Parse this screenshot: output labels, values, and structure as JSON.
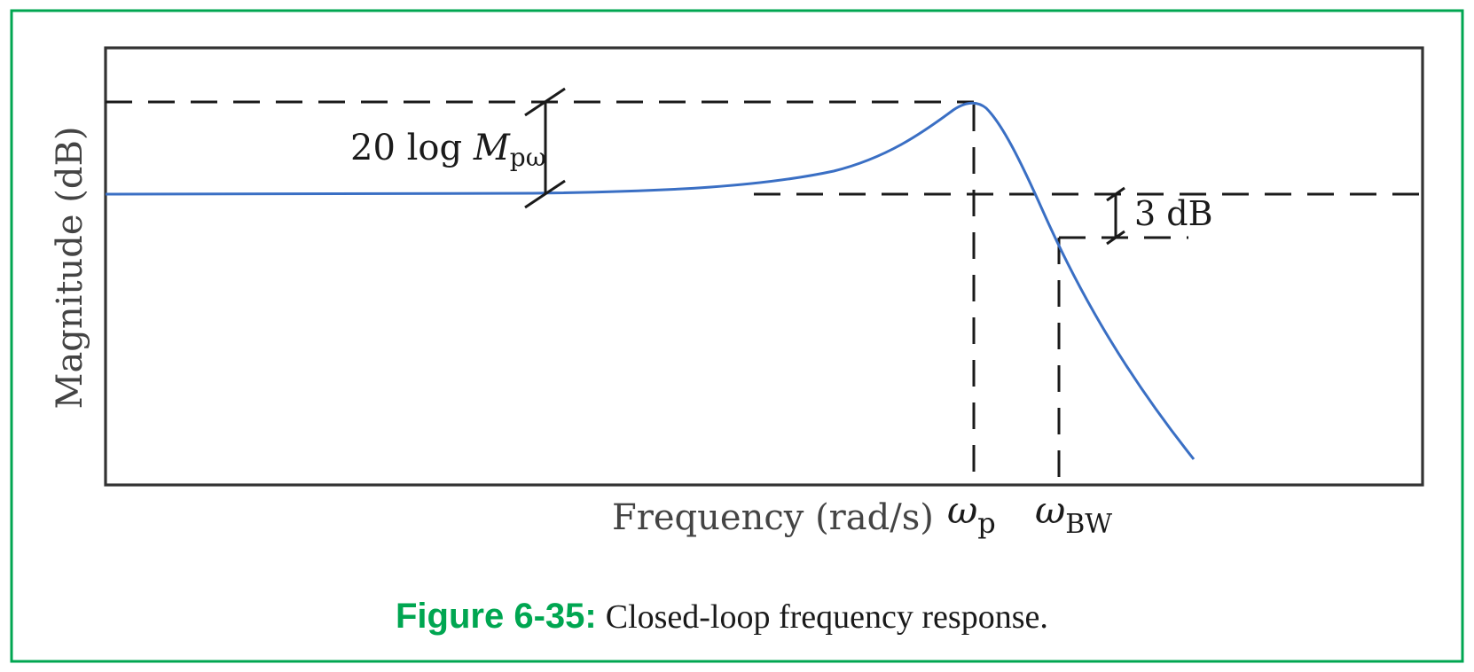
{
  "diagram": {
    "y_axis_label": "Magnitude (dB)",
    "x_axis_label": "Frequency (rad/s)",
    "peak_annotation": {
      "prefix": "20 log ",
      "symbol": "M",
      "subscript": "pω"
    },
    "bandwidth_drop": "3 dB",
    "peak_freq_label": {
      "symbol": "ω",
      "subscript": "p"
    },
    "bandwidth_freq_label": {
      "symbol": "ω",
      "subscript": "BW"
    },
    "curve_color": "#3a6fc4",
    "frame_color": "#00a651"
  },
  "caption": {
    "number": "Figure 6-35:",
    "text": "Closed-loop frequency response."
  }
}
